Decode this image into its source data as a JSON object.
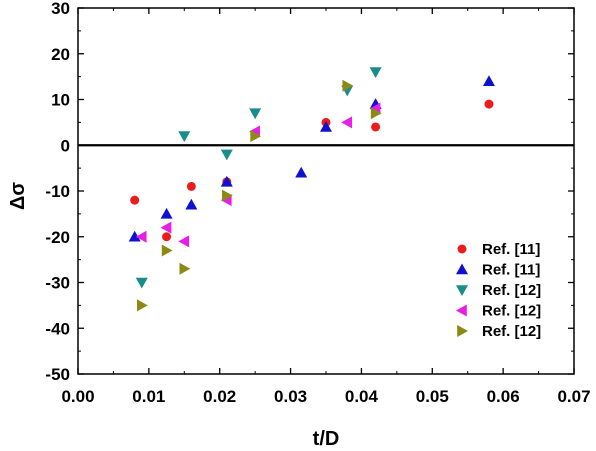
{
  "chart_data": {
    "type": "scatter",
    "title": "",
    "xlabel": "t/D",
    "ylabel": "Δσ",
    "xlim": [
      0.0,
      0.07
    ],
    "ylim": [
      -50,
      30
    ],
    "xticks": [
      0.0,
      0.01,
      0.02,
      0.03,
      0.04,
      0.05,
      0.06,
      0.07
    ],
    "yticks": [
      -50,
      -40,
      -30,
      -20,
      -10,
      0,
      10,
      20,
      30
    ],
    "xtick_labels": [
      "0.00",
      "0.01",
      "0.02",
      "0.03",
      "0.04",
      "0.05",
      "0.06",
      "0.07"
    ],
    "ytick_labels": [
      "-50",
      "-40",
      "-30",
      "-20",
      "-10",
      "0",
      "10",
      "20",
      "30"
    ],
    "reference_line_y": 0,
    "grid": false,
    "legend_position": "bottom-right",
    "series": [
      {
        "name": "Ref. [11]",
        "marker": "circle",
        "color": "#e81e1e",
        "points": [
          [
            0.008,
            -12
          ],
          [
            0.0125,
            -20
          ],
          [
            0.016,
            -9
          ],
          [
            0.021,
            -8
          ],
          [
            0.035,
            5
          ],
          [
            0.042,
            4
          ],
          [
            0.058,
            9
          ]
        ]
      },
      {
        "name": "Ref. [11]",
        "marker": "triangle-up",
        "color": "#1010d0",
        "points": [
          [
            0.008,
            -20
          ],
          [
            0.0125,
            -15
          ],
          [
            0.016,
            -13
          ],
          [
            0.021,
            -8
          ],
          [
            0.0315,
            -6
          ],
          [
            0.035,
            4
          ],
          [
            0.042,
            9
          ],
          [
            0.058,
            14
          ]
        ]
      },
      {
        "name": "Ref. [12]",
        "marker": "triangle-down",
        "color": "#1a8c8c",
        "points": [
          [
            0.009,
            -30
          ],
          [
            0.015,
            2
          ],
          [
            0.021,
            -2
          ],
          [
            0.025,
            7
          ],
          [
            0.038,
            12
          ],
          [
            0.042,
            16
          ]
        ]
      },
      {
        "name": "Ref. [12]",
        "marker": "triangle-left",
        "color": "#e61ee6",
        "points": [
          [
            0.009,
            -20
          ],
          [
            0.0125,
            -18
          ],
          [
            0.015,
            -21
          ],
          [
            0.021,
            -12
          ],
          [
            0.025,
            3
          ],
          [
            0.038,
            5
          ],
          [
            0.042,
            8
          ]
        ]
      },
      {
        "name": "Ref. [12]",
        "marker": "triangle-right",
        "color": "#8a8a14",
        "points": [
          [
            0.009,
            -35
          ],
          [
            0.0125,
            -23
          ],
          [
            0.015,
            -27
          ],
          [
            0.021,
            -11
          ],
          [
            0.025,
            2
          ],
          [
            0.038,
            13
          ],
          [
            0.042,
            7
          ]
        ]
      }
    ]
  }
}
